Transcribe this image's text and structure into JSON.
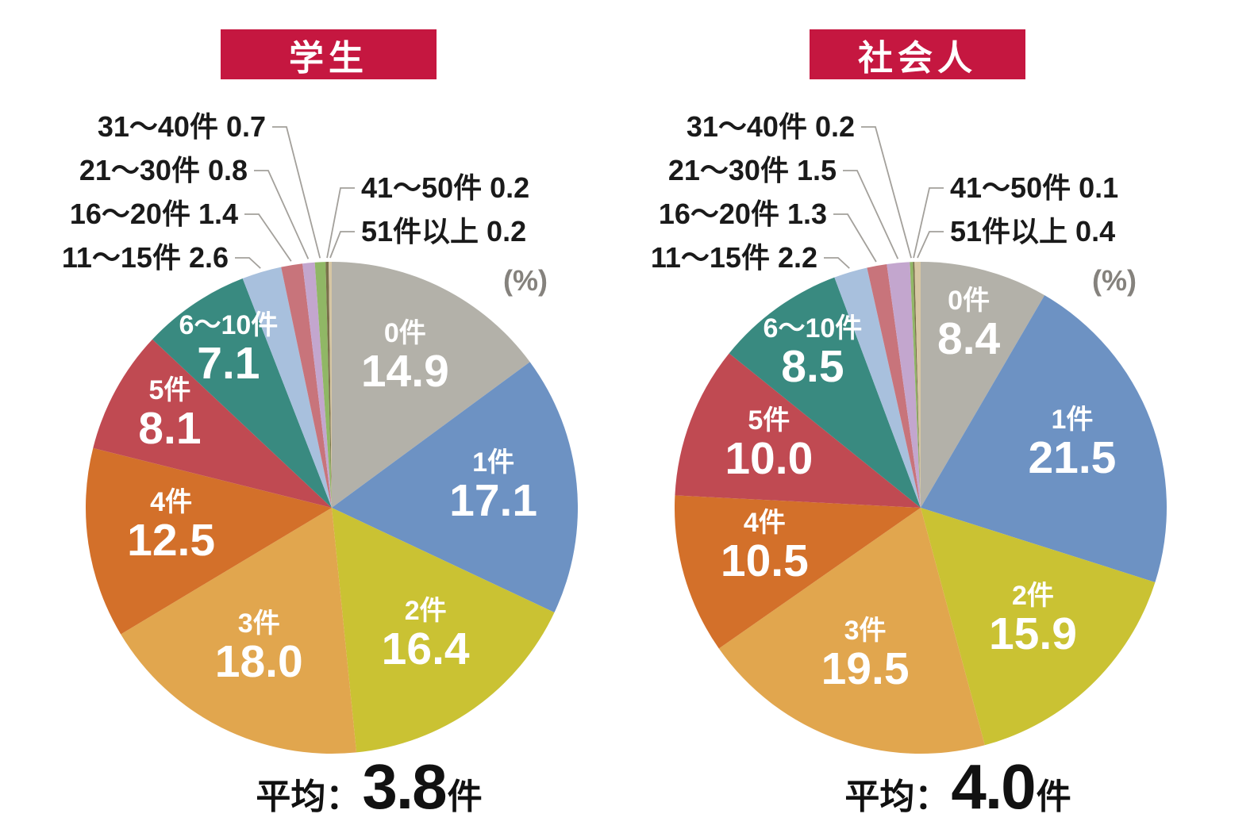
{
  "colors": {
    "title_bg": "#c51740",
    "title_text": "#ffffff",
    "percent_label": "#85827d",
    "callout_line": "#a3a09b",
    "inside_label_text": "#ffffff",
    "outside_label_text": "#1a1a1a",
    "average_text": "#111111"
  },
  "chart_data": [
    {
      "type": "pie",
      "title": "学生",
      "unit": "(%)",
      "average_label": "平均：",
      "average_value": "3.8",
      "average_unit": "件",
      "direction": "clockwise",
      "start_angle_deg": 0,
      "slices": [
        {
          "label": "0件",
          "value": 14.9,
          "color": "#b3b1a9",
          "label_pos": "in"
        },
        {
          "label": "1件",
          "value": 17.1,
          "color": "#6d92c3",
          "label_pos": "in"
        },
        {
          "label": "2件",
          "value": 16.4,
          "color": "#cac233",
          "label_pos": "in"
        },
        {
          "label": "3件",
          "value": 18.0,
          "color": "#e1a64e",
          "label_pos": "in"
        },
        {
          "label": "4件",
          "value": 12.5,
          "color": "#d3702a",
          "label_pos": "in"
        },
        {
          "label": "5件",
          "value": 8.1,
          "color": "#c04a52",
          "label_pos": "in"
        },
        {
          "label": "6〜10件",
          "value": 7.1,
          "color": "#398a80",
          "label_pos": "in"
        },
        {
          "label": "11〜15件",
          "value": 2.6,
          "color": "#a8c0dd",
          "label_pos": "out-left"
        },
        {
          "label": "16〜20件",
          "value": 1.4,
          "color": "#c8747b",
          "label_pos": "out-left"
        },
        {
          "label": "21〜30件",
          "value": 0.8,
          "color": "#c3a6ce",
          "label_pos": "out-left"
        },
        {
          "label": "31〜40件",
          "value": 0.7,
          "color": "#90b765",
          "label_pos": "out-left"
        },
        {
          "label": "41〜50件",
          "value": 0.2,
          "color": "#7a714b",
          "label_pos": "out-right"
        },
        {
          "label": "51件以上",
          "value": 0.2,
          "color": "#d6c6a3",
          "label_pos": "out-right"
        }
      ]
    },
    {
      "type": "pie",
      "title": "社会人",
      "unit": "(%)",
      "average_label": "平均：",
      "average_value": "4.0",
      "average_unit": "件",
      "direction": "clockwise",
      "start_angle_deg": 0,
      "slices": [
        {
          "label": "0件",
          "value": 8.4,
          "color": "#b3b1a9",
          "label_pos": "in"
        },
        {
          "label": "1件",
          "value": 21.5,
          "color": "#6d92c3",
          "label_pos": "in"
        },
        {
          "label": "2件",
          "value": 15.9,
          "color": "#cac233",
          "label_pos": "in"
        },
        {
          "label": "3件",
          "value": 19.5,
          "color": "#e1a64e",
          "label_pos": "in"
        },
        {
          "label": "4件",
          "value": 10.5,
          "color": "#d3702a",
          "label_pos": "in"
        },
        {
          "label": "5件",
          "value": 10.0,
          "color": "#c04a52",
          "label_pos": "in"
        },
        {
          "label": "6〜10件",
          "value": 8.5,
          "color": "#398a80",
          "label_pos": "in"
        },
        {
          "label": "11〜15件",
          "value": 2.2,
          "color": "#a8c0dd",
          "label_pos": "out-left"
        },
        {
          "label": "16〜20件",
          "value": 1.3,
          "color": "#c8747b",
          "label_pos": "out-left"
        },
        {
          "label": "21〜30件",
          "value": 1.5,
          "color": "#c3a6ce",
          "label_pos": "out-left"
        },
        {
          "label": "31〜40件",
          "value": 0.2,
          "color": "#90b765",
          "label_pos": "out-left"
        },
        {
          "label": "41〜50件",
          "value": 0.1,
          "color": "#7a714b",
          "label_pos": "out-right"
        },
        {
          "label": "51件以上",
          "value": 0.4,
          "color": "#d6c6a3",
          "label_pos": "out-right"
        }
      ]
    }
  ]
}
